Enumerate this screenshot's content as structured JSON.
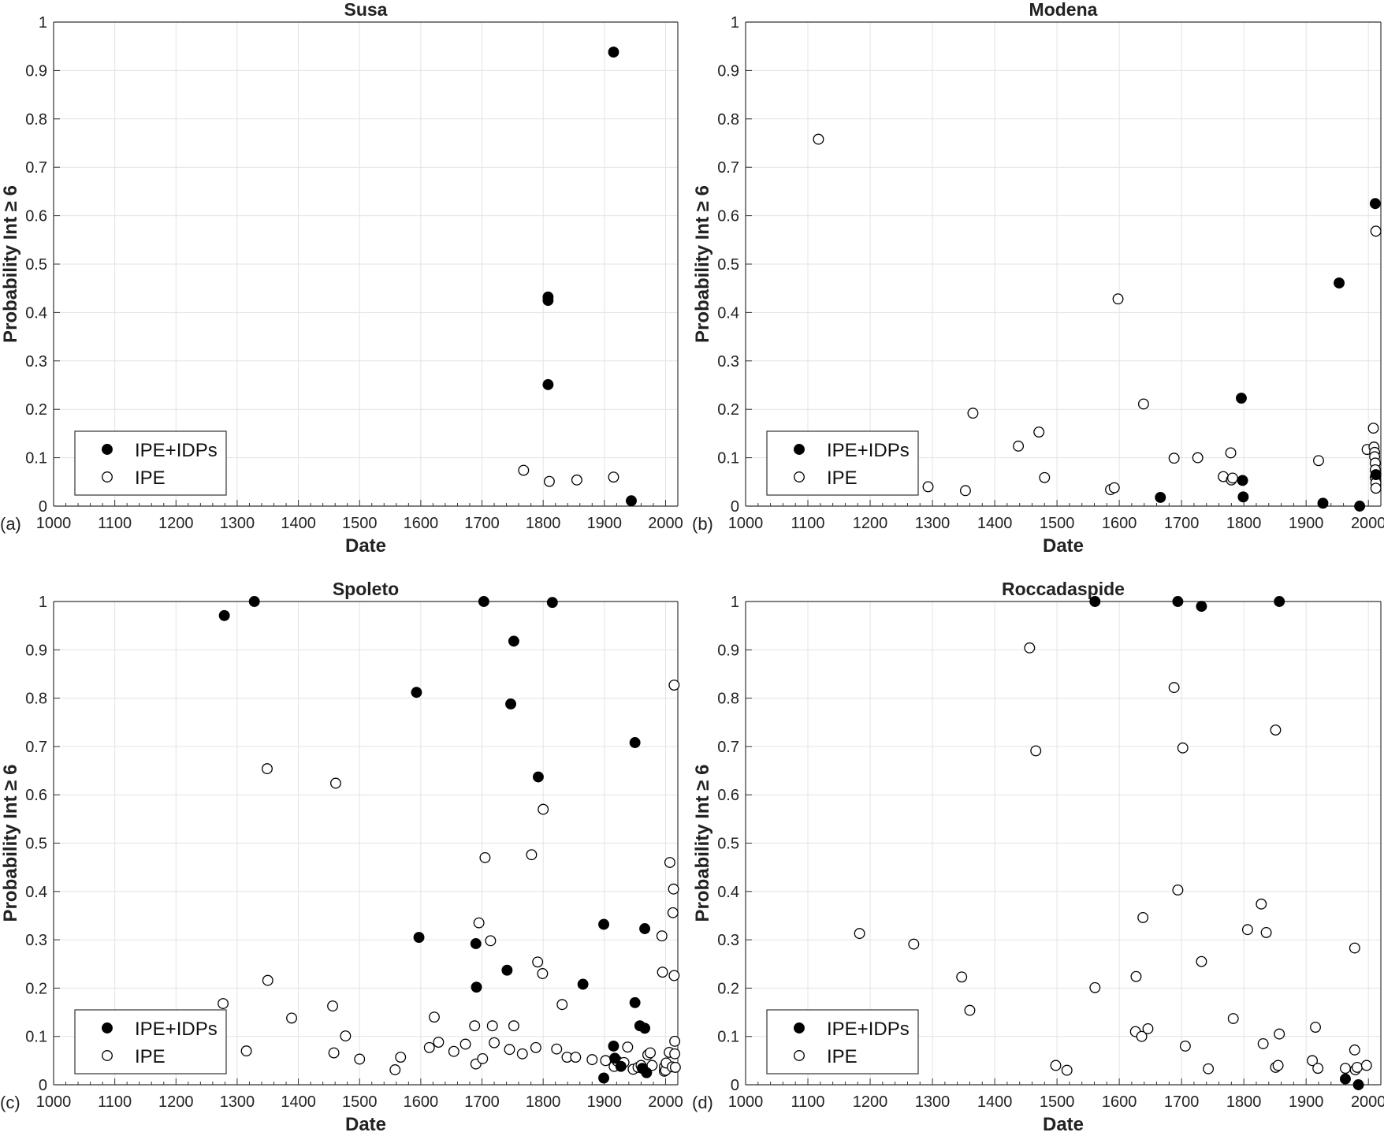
{
  "figure": {
    "ylabel": "Probability Int ≥ 6",
    "xlabel": "Date"
  },
  "chart_data": [
    {
      "type": "scatter",
      "panel_label": "(a)",
      "title": "Susa",
      "xlabel": "Date",
      "ylabel": "Probability Int ≥ 6",
      "xlim": [
        1000,
        2020
      ],
      "ylim": [
        0,
        1
      ],
      "xticks": [
        1000,
        1100,
        1200,
        1300,
        1400,
        1500,
        1600,
        1700,
        1800,
        1900,
        2000
      ],
      "yticks": [
        0,
        0.1,
        0.2,
        0.3,
        0.4,
        0.5,
        0.6,
        0.7,
        0.8,
        0.9,
        1
      ],
      "ytick_labels": [
        "0",
        "0.1",
        "0.2",
        "0.3",
        "0.4",
        "0.5",
        "0.6",
        "0.7",
        "0.8",
        "0.9",
        "1"
      ],
      "grid": true,
      "legend_position": "lower-left",
      "series": [
        {
          "name": "IPE+IDPs",
          "marker": "filled",
          "points": [
            [
              1808,
              0.432
            ],
            [
              1808,
              0.425
            ],
            [
              1808,
              0.251
            ],
            [
              1915,
              0.938
            ],
            [
              1944,
              0.011
            ]
          ]
        },
        {
          "name": "IPE",
          "marker": "open",
          "points": [
            [
              1768,
              0.074
            ],
            [
              1810,
              0.051
            ],
            [
              1855,
              0.054
            ],
            [
              1915,
              0.06
            ]
          ]
        }
      ]
    },
    {
      "type": "scatter",
      "panel_label": "(b)",
      "title": "Modena",
      "xlabel": "Date",
      "ylabel": "Probability Int ≥ 6",
      "xlim": [
        1000,
        2020
      ],
      "ylim": [
        0,
        1
      ],
      "xticks": [
        1000,
        1100,
        1200,
        1300,
        1400,
        1500,
        1600,
        1700,
        1800,
        1900,
        2000
      ],
      "yticks": [
        0,
        0.1,
        0.2,
        0.3,
        0.4,
        0.5,
        0.6,
        0.7,
        0.8,
        0.9,
        1
      ],
      "ytick_labels": [
        "0",
        "0.1",
        "0.2",
        "0.3",
        "0.4",
        "0.5",
        "0.6",
        "0.7",
        "0.8",
        "0.9",
        "1"
      ],
      "grid": true,
      "legend_position": "lower-left",
      "series": [
        {
          "name": "IPE+IDPs",
          "marker": "filled",
          "points": [
            [
              1666,
              0.018
            ],
            [
              1796,
              0.223
            ],
            [
              1798,
              0.053
            ],
            [
              1799,
              0.019
            ],
            [
              1927,
              0.006
            ],
            [
              1953,
              0.461
            ],
            [
              1986,
              0.0
            ],
            [
              2011,
              0.625
            ],
            [
              2012,
              0.065
            ]
          ]
        },
        {
          "name": "IPE",
          "marker": "open",
          "points": [
            [
              1117,
              0.758
            ],
            [
              1293,
              0.04
            ],
            [
              1353,
              0.032
            ],
            [
              1365,
              0.192
            ],
            [
              1438,
              0.124
            ],
            [
              1471,
              0.153
            ],
            [
              1480,
              0.059
            ],
            [
              1586,
              0.034
            ],
            [
              1592,
              0.038
            ],
            [
              1598,
              0.428
            ],
            [
              1639,
              0.211
            ],
            [
              1688,
              0.099
            ],
            [
              1726,
              0.1
            ],
            [
              1767,
              0.061
            ],
            [
              1779,
              0.11
            ],
            [
              1780,
              0.054
            ],
            [
              1782,
              0.058
            ],
            [
              1920,
              0.094
            ],
            [
              1998,
              0.117
            ],
            [
              2008,
              0.161
            ],
            [
              2009,
              0.122
            ],
            [
              2010,
              0.111
            ],
            [
              2010,
              0.102
            ],
            [
              2011,
              0.089
            ],
            [
              2011,
              0.075
            ],
            [
              2011,
              0.059
            ],
            [
              2012,
              0.048
            ],
            [
              2012,
              0.037
            ],
            [
              2012,
              0.568
            ]
          ]
        }
      ]
    },
    {
      "type": "scatter",
      "panel_label": "(c)",
      "title": "Spoleto",
      "xlabel": "Date",
      "ylabel": "Probability Int ≥ 6",
      "xlim": [
        1000,
        2020
      ],
      "ylim": [
        0,
        1
      ],
      "xticks": [
        1000,
        1100,
        1200,
        1300,
        1400,
        1500,
        1600,
        1700,
        1800,
        1900,
        2000
      ],
      "yticks": [
        0,
        0.1,
        0.2,
        0.3,
        0.4,
        0.5,
        0.6,
        0.7,
        0.8,
        0.9,
        1
      ],
      "ytick_labels": [
        "0",
        "0.1",
        "0.2",
        "0.3",
        "0.4",
        "0.5",
        "0.6",
        "0.7",
        "0.8",
        "0.9",
        "1"
      ],
      "grid": true,
      "legend_position": "lower-left",
      "series": [
        {
          "name": "IPE+IDPs",
          "marker": "filled",
          "points": [
            [
              1279,
              0.971
            ],
            [
              1328,
              1.0
            ],
            [
              1593,
              0.812
            ],
            [
              1597,
              0.305
            ],
            [
              1690,
              0.292
            ],
            [
              1691,
              0.202
            ],
            [
              1703,
              1.0
            ],
            [
              1741,
              0.237
            ],
            [
              1747,
              0.788
            ],
            [
              1752,
              0.918
            ],
            [
              1792,
              0.637
            ],
            [
              1815,
              0.998
            ],
            [
              1865,
              0.208
            ],
            [
              1899,
              0.332
            ],
            [
              1899,
              0.014
            ],
            [
              1950,
              0.708
            ],
            [
              1950,
              0.17
            ],
            [
              1958,
              0.122
            ],
            [
              1966,
              0.323
            ],
            [
              1966,
              0.117
            ],
            [
              1915,
              0.08
            ],
            [
              1917,
              0.055
            ],
            [
              1927,
              0.038
            ],
            [
              1962,
              0.034
            ],
            [
              1969,
              0.025
            ]
          ]
        },
        {
          "name": "IPE",
          "marker": "open",
          "points": [
            [
              1277,
              0.168
            ],
            [
              1315,
              0.07
            ],
            [
              1349,
              0.654
            ],
            [
              1350,
              0.216
            ],
            [
              1389,
              0.138
            ],
            [
              1456,
              0.163
            ],
            [
              1458,
              0.066
            ],
            [
              1461,
              0.624
            ],
            [
              1477,
              0.101
            ],
            [
              1500,
              0.053
            ],
            [
              1558,
              0.031
            ],
            [
              1567,
              0.057
            ],
            [
              1614,
              0.077
            ],
            [
              1622,
              0.14
            ],
            [
              1629,
              0.088
            ],
            [
              1654,
              0.069
            ],
            [
              1673,
              0.084
            ],
            [
              1688,
              0.122
            ],
            [
              1690,
              0.043
            ],
            [
              1695,
              0.335
            ],
            [
              1701,
              0.054
            ],
            [
              1705,
              0.47
            ],
            [
              1714,
              0.298
            ],
            [
              1717,
              0.122
            ],
            [
              1720,
              0.087
            ],
            [
              1745,
              0.073
            ],
            [
              1752,
              0.122
            ],
            [
              1766,
              0.064
            ],
            [
              1781,
              0.476
            ],
            [
              1788,
              0.077
            ],
            [
              1791,
              0.254
            ],
            [
              1799,
              0.23
            ],
            [
              1800,
              0.57
            ],
            [
              1822,
              0.074
            ],
            [
              1831,
              0.166
            ],
            [
              1839,
              0.057
            ],
            [
              1853,
              0.057
            ],
            [
              1880,
              0.052
            ],
            [
              1902,
              0.05
            ],
            [
              1916,
              0.038
            ],
            [
              1921,
              0.049
            ],
            [
              1932,
              0.046
            ],
            [
              1938,
              0.078
            ],
            [
              1947,
              0.032
            ],
            [
              1955,
              0.036
            ],
            [
              1960,
              0.04
            ],
            [
              1966,
              0.031
            ],
            [
              1971,
              0.062
            ],
            [
              1975,
              0.066
            ],
            [
              1978,
              0.04
            ],
            [
              1994,
              0.308
            ],
            [
              1995,
              0.233
            ],
            [
              1998,
              0.028
            ],
            [
              1998,
              0.037
            ],
            [
              2000,
              0.03
            ],
            [
              2001,
              0.045
            ],
            [
              2006,
              0.067
            ],
            [
              2007,
              0.46
            ],
            [
              2011,
              0.037
            ],
            [
              2012,
              0.356
            ],
            [
              2013,
              0.405
            ],
            [
              2014,
              0.226
            ],
            [
              2014,
              0.827
            ],
            [
              2015,
              0.09
            ],
            [
              2015,
              0.064
            ],
            [
              2016,
              0.036
            ]
          ]
        }
      ]
    },
    {
      "type": "scatter",
      "panel_label": "(d)",
      "title": "Roccadaspide",
      "xlabel": "Date",
      "ylabel": "Probability Int ≥ 6",
      "xlim": [
        1000,
        2020
      ],
      "ylim": [
        0,
        1
      ],
      "xticks": [
        1000,
        1100,
        1200,
        1300,
        1400,
        1500,
        1600,
        1700,
        1800,
        1900,
        2000
      ],
      "yticks": [
        0,
        0.1,
        0.2,
        0.3,
        0.4,
        0.5,
        0.6,
        0.7,
        0.8,
        0.9,
        1
      ],
      "ytick_labels": [
        "0",
        "0.1",
        "0.2",
        "0.3",
        "0.4",
        "0.5",
        "0.6",
        "0.7",
        "0.8",
        "0.9",
        "1"
      ],
      "grid": true,
      "legend_position": "lower-left",
      "series": [
        {
          "name": "IPE+IDPs",
          "marker": "filled",
          "points": [
            [
              1561,
              1.0
            ],
            [
              1694,
              1.0
            ],
            [
              1732,
              0.99
            ],
            [
              1857,
              1.0
            ],
            [
              1963,
              0.012
            ],
            [
              1984,
              0.0
            ]
          ]
        },
        {
          "name": "IPE",
          "marker": "open",
          "points": [
            [
              1183,
              0.313
            ],
            [
              1270,
              0.291
            ],
            [
              1347,
              0.223
            ],
            [
              1360,
              0.154
            ],
            [
              1456,
              0.904
            ],
            [
              1466,
              0.691
            ],
            [
              1498,
              0.04
            ],
            [
              1516,
              0.03
            ],
            [
              1561,
              0.201
            ],
            [
              1626,
              0.11
            ],
            [
              1627,
              0.224
            ],
            [
              1636,
              0.1
            ],
            [
              1638,
              0.346
            ],
            [
              1646,
              0.116
            ],
            [
              1688,
              0.822
            ],
            [
              1694,
              0.403
            ],
            [
              1702,
              0.697
            ],
            [
              1706,
              0.08
            ],
            [
              1743,
              0.033
            ],
            [
              1732,
              0.255
            ],
            [
              1783,
              0.137
            ],
            [
              1806,
              0.321
            ],
            [
              1828,
              0.374
            ],
            [
              1831,
              0.085
            ],
            [
              1836,
              0.315
            ],
            [
              1851,
              0.734
            ],
            [
              1851,
              0.036
            ],
            [
              1855,
              0.04
            ],
            [
              1857,
              0.105
            ],
            [
              1910,
              0.05
            ],
            [
              1915,
              0.119
            ],
            [
              1919,
              0.034
            ],
            [
              1963,
              0.034
            ],
            [
              1978,
              0.283
            ],
            [
              1978,
              0.072
            ],
            [
              1979,
              0.031
            ],
            [
              1982,
              0.036
            ],
            [
              1997,
              0.04
            ]
          ]
        }
      ]
    }
  ]
}
